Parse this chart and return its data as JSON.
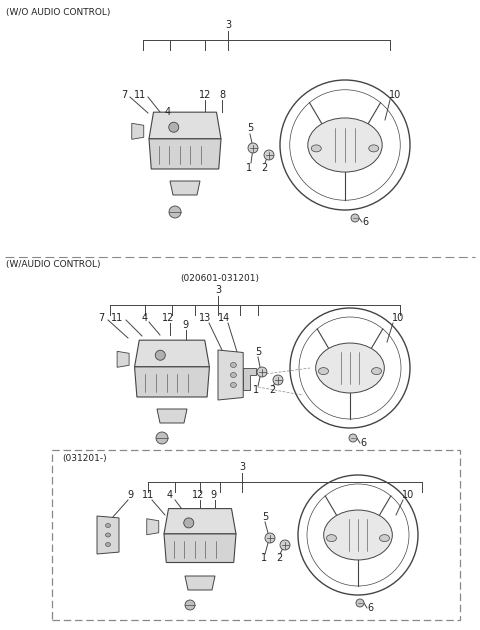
{
  "bg_color": "#ffffff",
  "line_color": "#444444",
  "text_color": "#222222",
  "dash_color": "#888888",
  "section1_label": "(W/O AUDIO CONTROL)",
  "section2_label": "(W/AUDIO CONTROL)",
  "section2_sublabel": "(020601-031201)",
  "section3_sublabel": "(031201-)",
  "fig_width": 4.8,
  "fig_height": 6.3,
  "dpi": 100
}
